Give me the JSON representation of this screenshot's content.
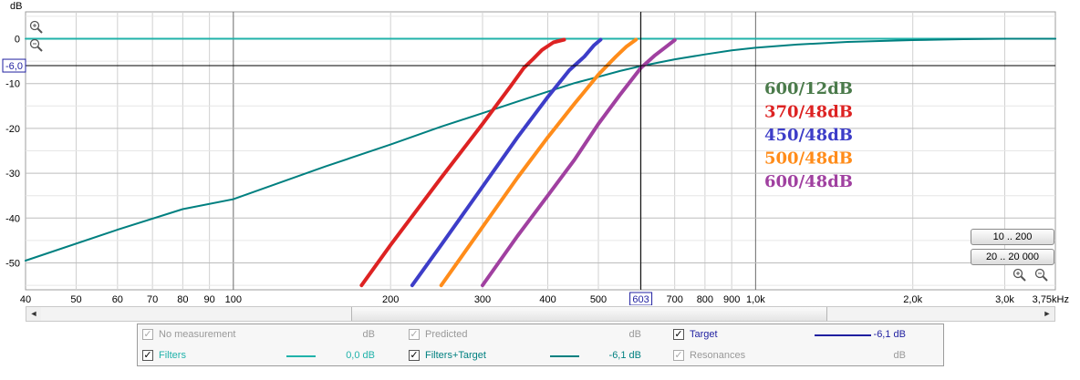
{
  "chart_data": {
    "type": "line",
    "x_scale": "log",
    "x_unit": "Hz",
    "y_unit": "dB",
    "xlim": [
      40,
      3750
    ],
    "ylim": [
      -56,
      6
    ],
    "grid": true,
    "x_ticks": [
      {
        "value": 40,
        "label": "40"
      },
      {
        "value": 50,
        "label": "50"
      },
      {
        "value": 60,
        "label": "60"
      },
      {
        "value": 70,
        "label": "70"
      },
      {
        "value": 80,
        "label": "80"
      },
      {
        "value": 90,
        "label": "90"
      },
      {
        "value": 100,
        "label": "100"
      },
      {
        "value": 200,
        "label": "200"
      },
      {
        "value": 300,
        "label": "300"
      },
      {
        "value": 400,
        "label": "400"
      },
      {
        "value": 500,
        "label": "500"
      },
      {
        "value": 700,
        "label": "700"
      },
      {
        "value": 800,
        "label": "800"
      },
      {
        "value": 900,
        "label": "900"
      },
      {
        "value": 1000,
        "label": "1,0k"
      },
      {
        "value": 2000,
        "label": "2,0k"
      },
      {
        "value": 3000,
        "label": "3,0k"
      },
      {
        "value": 3750,
        "label": "3,75kHz"
      }
    ],
    "y_ticks": [
      {
        "value": 0,
        "label": "0"
      },
      {
        "value": -10,
        "label": "-10"
      },
      {
        "value": -20,
        "label": "-20"
      },
      {
        "value": -30,
        "label": "-30"
      },
      {
        "value": -40,
        "label": "-40"
      },
      {
        "value": -50,
        "label": "-50"
      }
    ],
    "cursor": {
      "x": 603,
      "y": -6.0,
      "x_label": "603",
      "y_label": "-6,0"
    },
    "series": [
      {
        "name": "Filters",
        "color": "#20b2aa",
        "points": [
          [
            40,
            0
          ],
          [
            3750,
            0
          ]
        ]
      },
      {
        "name": "600/12dB",
        "color": "#008080",
        "points": [
          [
            40,
            -49.5
          ],
          [
            60,
            -42.6
          ],
          [
            80,
            -38
          ],
          [
            100,
            -35.8
          ],
          [
            150,
            -28.5
          ],
          [
            200,
            -23.6
          ],
          [
            250,
            -19.6
          ],
          [
            300,
            -16.6
          ],
          [
            350,
            -14
          ],
          [
            400,
            -11.8
          ],
          [
            450,
            -9.9
          ],
          [
            500,
            -8.5
          ],
          [
            550,
            -7.2
          ],
          [
            603,
            -6.1
          ],
          [
            700,
            -4.6
          ],
          [
            800,
            -3.5
          ],
          [
            900,
            -2.6
          ],
          [
            1000,
            -2.0
          ],
          [
            1200,
            -1.3
          ],
          [
            1500,
            -0.7
          ],
          [
            2000,
            -0.3
          ],
          [
            2500,
            -0.1
          ],
          [
            3000,
            0
          ],
          [
            3750,
            0
          ]
        ]
      },
      {
        "name": "370/48dB",
        "color": "#dd2222",
        "points": [
          [
            176,
            -55
          ],
          [
            200,
            -46
          ],
          [
            250,
            -31
          ],
          [
            300,
            -19
          ],
          [
            340,
            -10.5
          ],
          [
            360,
            -6.5
          ],
          [
            375,
            -4.5
          ],
          [
            390,
            -2.5
          ],
          [
            410,
            -0.8
          ],
          [
            430,
            -0.2
          ]
        ]
      },
      {
        "name": "450/48dB",
        "color": "#3d3dc8",
        "points": [
          [
            220,
            -55
          ],
          [
            250,
            -46
          ],
          [
            300,
            -33
          ],
          [
            350,
            -22
          ],
          [
            400,
            -13
          ],
          [
            440,
            -7
          ],
          [
            470,
            -4
          ],
          [
            490,
            -1.5
          ],
          [
            505,
            -0.2
          ]
        ]
      },
      {
        "name": "500/48dB",
        "color": "#ff8c1a",
        "points": [
          [
            250,
            -55
          ],
          [
            300,
            -42
          ],
          [
            350,
            -31
          ],
          [
            400,
            -22
          ],
          [
            450,
            -14.5
          ],
          [
            500,
            -8
          ],
          [
            540,
            -4
          ],
          [
            565,
            -1.8
          ],
          [
            590,
            -0.2
          ]
        ]
      },
      {
        "name": "600/48dB",
        "color": "#a040a0",
        "points": [
          [
            300,
            -55
          ],
          [
            350,
            -44
          ],
          [
            400,
            -35
          ],
          [
            450,
            -27
          ],
          [
            500,
            -19
          ],
          [
            550,
            -12.5
          ],
          [
            603,
            -6.5
          ],
          [
            640,
            -3.8
          ],
          [
            670,
            -2
          ],
          [
            700,
            -0.3
          ]
        ]
      }
    ]
  },
  "annotations": [
    {
      "text": "600/12dB",
      "color": "#4a7a4a"
    },
    {
      "text": "370/48dB",
      "color": "#dd2222"
    },
    {
      "text": "450/48dB",
      "color": "#3d3dc8"
    },
    {
      "text": "500/48dB",
      "color": "#ff8c1a"
    },
    {
      "text": "600/48dB",
      "color": "#a040a0"
    }
  ],
  "y_axis_title": "dB",
  "buttons": {
    "range_small": "10 .. 200",
    "range_full": "20 .. 20 000"
  },
  "legend": {
    "no_measurement": {
      "label": "No measurement",
      "value": "dB"
    },
    "predicted": {
      "label": "Predicted",
      "value": "dB"
    },
    "target": {
      "label": "Target",
      "value": "-6,1 dB",
      "color": "#1f1fa0"
    },
    "filters": {
      "label": "Filters",
      "value": "0,0 dB",
      "color": "#20b2aa"
    },
    "filters_target": {
      "label": "Filters+Target",
      "value": "-6,1 dB",
      "color": "#008080"
    },
    "resonances": {
      "label": "Resonances",
      "value": "dB"
    }
  },
  "scrollbar": {
    "left_arrow": "◄",
    "right_arrow": "►"
  },
  "checkmark": "✓"
}
